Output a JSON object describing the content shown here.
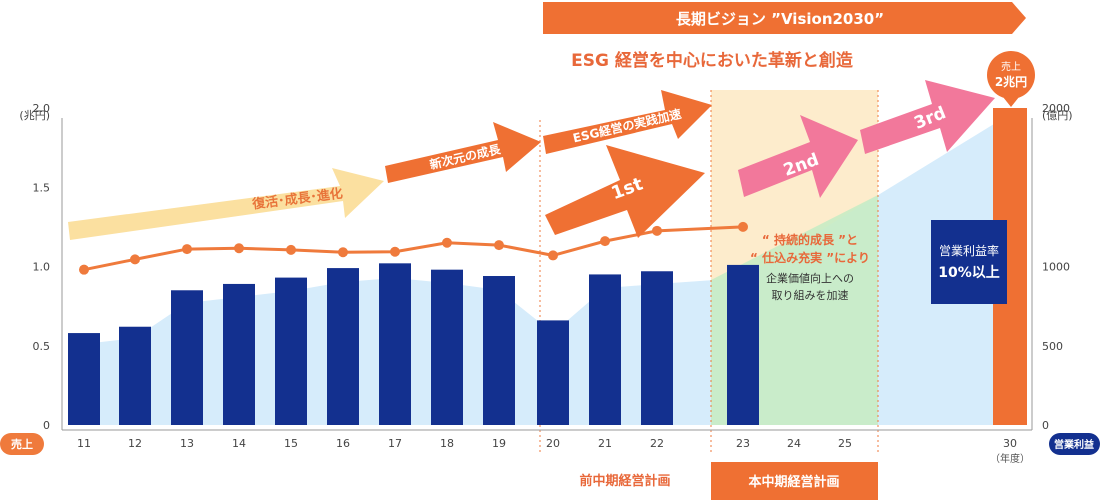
{
  "banner": {
    "title": "長期ビジョン ”Vision2030”",
    "subtitle": "ESG 経営を中心においた革新と創造"
  },
  "callouts": {
    "target_bubble": [
      "売上",
      "2兆円"
    ],
    "margin_box": [
      "営業利益率",
      "10%以上"
    ],
    "growth_note_1": "“ 持続的成長 ”と",
    "growth_note_2": "“ 仕込み充実 ”により",
    "growth_note_3": "企業価値向上への",
    "growth_note_4": "取り組みを加速"
  },
  "arrows": {
    "revival": "復活･成長･進化",
    "new_dimension": "新次元の成長",
    "esg_practice": "ESG経営の実践加速",
    "step1": "1st",
    "step2": "2nd",
    "step3": "3rd"
  },
  "plans": {
    "previous": "前中期経営計画",
    "current": "本中期経営計画"
  },
  "colors": {
    "revenue_bar": "#13308f",
    "operating_profit": "#ef7a3c",
    "target_bar": "#ef7033",
    "area_fill": "#d6ecfb",
    "current_plan_bg": "#fde9c3",
    "pink": "#f2789b",
    "pale_arrow": "#fbe0a0",
    "green": "#c8ecc4"
  },
  "chart_data": {
    "type": "bar",
    "categories": [
      "11",
      "12",
      "13",
      "14",
      "15",
      "16",
      "17",
      "18",
      "19",
      "20",
      "21",
      "22",
      "23",
      "24",
      "25",
      "30"
    ],
    "x_unit": "（年度）",
    "series": [
      {
        "name": "売上",
        "unit": "(兆円)",
        "axis": "left",
        "values": [
          0.58,
          0.62,
          0.85,
          0.89,
          0.93,
          0.99,
          1.02,
          0.98,
          0.94,
          0.66,
          0.95,
          0.97,
          1.01,
          null,
          null,
          2.0
        ]
      },
      {
        "name": "営業利益",
        "unit": "(億円)",
        "axis": "right",
        "values": [
          980,
          1045,
          1110,
          1115,
          1105,
          1090,
          1093,
          1150,
          1135,
          1070,
          1160,
          1225,
          1250,
          null,
          null,
          null
        ]
      }
    ],
    "y_left": {
      "label": "(兆円)",
      "ticks": [
        "0",
        "0.5",
        "1.0",
        "1.5",
        "2.0"
      ],
      "range": [
        0,
        2.0
      ]
    },
    "y_right": {
      "label": "(億円)",
      "ticks": [
        "0",
        "500",
        "1000",
        "2000"
      ],
      "range": [
        0,
        2000
      ]
    },
    "axis_tags": {
      "left": "売上",
      "right": "営業利益"
    }
  }
}
